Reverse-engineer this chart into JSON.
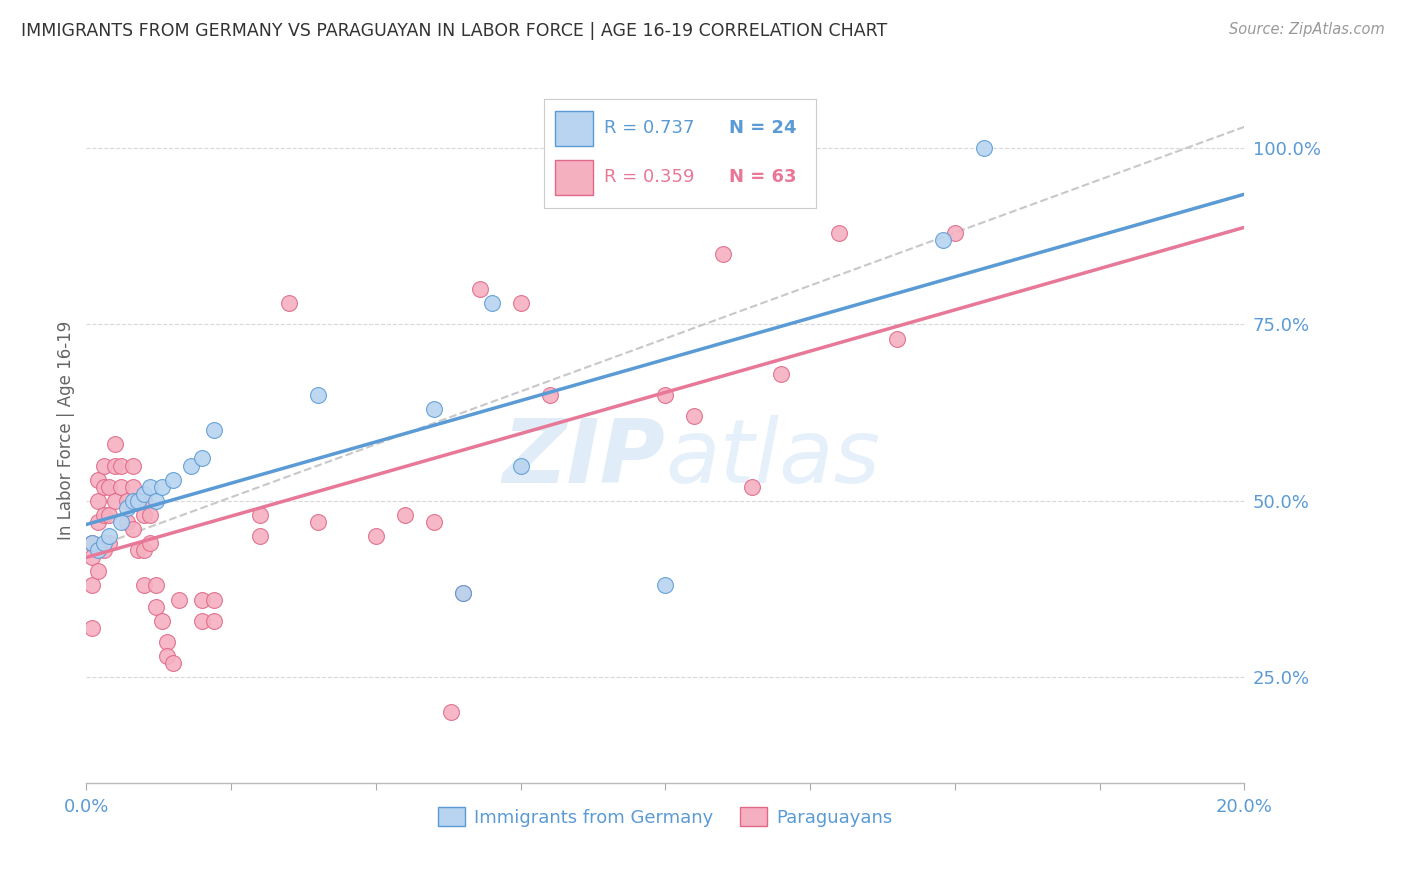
{
  "title": "IMMIGRANTS FROM GERMANY VS PARAGUAYAN IN LABOR FORCE | AGE 16-19 CORRELATION CHART",
  "source": "Source: ZipAtlas.com",
  "ylabel": "In Labor Force | Age 16-19",
  "xlim": [
    0.0,
    0.2
  ],
  "ylim": [
    0.1,
    1.1
  ],
  "yticks": [
    0.25,
    0.5,
    0.75,
    1.0
  ],
  "ytick_labels": [
    "25.0%",
    "50.0%",
    "75.0%",
    "100.0%"
  ],
  "xticks": [
    0.0,
    0.025,
    0.05,
    0.075,
    0.1,
    0.125,
    0.15,
    0.175,
    0.2
  ],
  "xtick_labels": [
    "0.0%",
    "",
    "",
    "",
    "",
    "",
    "",
    "",
    "20.0%"
  ],
  "background_color": "#ffffff",
  "grid_color": "#d8d8d8",
  "title_color": "#333333",
  "axis_color": "#5b9bd5",
  "watermark": "ZIPatlas",
  "legend_R1": "R = 0.737",
  "legend_N1": "N = 24",
  "legend_R2": "R = 0.359",
  "legend_N2": "N = 63",
  "germany_color": "#b8d4f0",
  "paraguay_color": "#f5b0c0",
  "germany_edge": "#5b9bd5",
  "paraguay_edge": "#e06888",
  "line_germany_color": "#5b9bd5",
  "line_paraguay_color": "#e87898",
  "diagonal_color": "#c8c8c8",
  "germany_x": [
    0.001,
    0.002,
    0.003,
    0.004,
    0.006,
    0.007,
    0.008,
    0.009,
    0.01,
    0.011,
    0.012,
    0.013,
    0.015,
    0.018,
    0.02,
    0.022,
    0.04,
    0.06,
    0.065,
    0.07,
    0.075,
    0.1,
    0.148,
    0.155
  ],
  "germany_y": [
    0.44,
    0.43,
    0.44,
    0.45,
    0.47,
    0.49,
    0.5,
    0.5,
    0.51,
    0.52,
    0.5,
    0.52,
    0.53,
    0.55,
    0.56,
    0.6,
    0.65,
    0.63,
    0.37,
    0.78,
    0.55,
    0.38,
    0.87,
    1.0
  ],
  "paraguay_x": [
    0.001,
    0.001,
    0.001,
    0.001,
    0.002,
    0.002,
    0.002,
    0.002,
    0.003,
    0.003,
    0.003,
    0.003,
    0.004,
    0.004,
    0.004,
    0.005,
    0.005,
    0.005,
    0.006,
    0.006,
    0.007,
    0.007,
    0.008,
    0.008,
    0.008,
    0.009,
    0.01,
    0.01,
    0.01,
    0.01,
    0.011,
    0.011,
    0.012,
    0.012,
    0.013,
    0.014,
    0.014,
    0.015,
    0.016,
    0.02,
    0.02,
    0.022,
    0.022,
    0.03,
    0.03,
    0.035,
    0.04,
    0.05,
    0.055,
    0.06,
    0.063,
    0.065,
    0.068,
    0.075,
    0.08,
    0.1,
    0.105,
    0.11,
    0.115,
    0.12,
    0.13,
    0.14,
    0.15
  ],
  "paraguay_y": [
    0.44,
    0.42,
    0.38,
    0.32,
    0.53,
    0.5,
    0.47,
    0.4,
    0.55,
    0.52,
    0.48,
    0.43,
    0.52,
    0.48,
    0.44,
    0.58,
    0.55,
    0.5,
    0.55,
    0.52,
    0.5,
    0.47,
    0.55,
    0.52,
    0.46,
    0.43,
    0.5,
    0.48,
    0.43,
    0.38,
    0.48,
    0.44,
    0.38,
    0.35,
    0.33,
    0.3,
    0.28,
    0.27,
    0.36,
    0.36,
    0.33,
    0.36,
    0.33,
    0.48,
    0.45,
    0.78,
    0.47,
    0.45,
    0.48,
    0.47,
    0.2,
    0.37,
    0.8,
    0.78,
    0.65,
    0.65,
    0.62,
    0.85,
    0.52,
    0.68,
    0.88,
    0.73,
    0.88
  ]
}
